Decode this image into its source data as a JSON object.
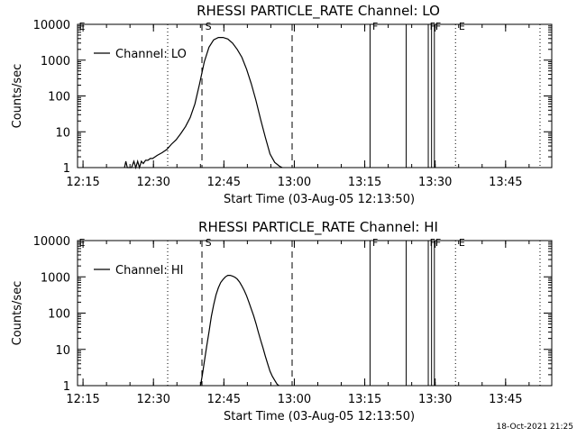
{
  "chart_data": [
    {
      "type": "line",
      "title": "RHESSI PARTICLE_RATE Channel: LO",
      "xlabel": "Start Time (03-Aug-05 12:13:50)",
      "ylabel": "Counts/sec",
      "y_scale": "log",
      "ylim": [
        1,
        10000
      ],
      "x_unit": "minutes after 12:13:50",
      "x_ticks": [
        {
          "label": "12:15",
          "x": 1.17
        },
        {
          "label": "12:30",
          "x": 16.17
        },
        {
          "label": "12:45",
          "x": 31.17
        },
        {
          "label": "13:00",
          "x": 46.17
        },
        {
          "label": "13:15",
          "x": 61.17
        },
        {
          "label": "13:30",
          "x": 76.17
        },
        {
          "label": "13:45",
          "x": 91.17
        }
      ],
      "y_ticks": [
        {
          "label": "1",
          "v": 1
        },
        {
          "label": "10",
          "v": 10
        },
        {
          "label": "100",
          "v": 100
        },
        {
          "label": "1000",
          "v": 1000
        },
        {
          "label": "10000",
          "v": 10000
        }
      ],
      "xlim": [
        0,
        101
      ],
      "legend": {
        "label": "Channel: LO",
        "position": "top-left"
      },
      "series": [
        {
          "name": "Channel: LO",
          "x": [
            10,
            10.3,
            10.6,
            11,
            11.5,
            12,
            12.4,
            12.8,
            13.2,
            13.6,
            14,
            14.5,
            15,
            15.5,
            16,
            17,
            18,
            19,
            20,
            21,
            22,
            23,
            24,
            25,
            26,
            27,
            28,
            29,
            30,
            31,
            32,
            33,
            34,
            35,
            36,
            37,
            38,
            39,
            40,
            41,
            42,
            43,
            43.6
          ],
          "y": [
            1,
            1.5,
            1,
            1,
            1,
            1.5,
            1,
            1.5,
            1,
            1.5,
            1.3,
            1.6,
            1.6,
            1.8,
            1.8,
            2.2,
            2.6,
            3.2,
            4.5,
            6,
            9,
            14,
            25,
            60,
            220,
            900,
            2300,
            3700,
            4300,
            4300,
            3900,
            3000,
            2000,
            1200,
            560,
            220,
            75,
            22,
            7,
            2.4,
            1.4,
            1.1,
            1
          ]
        }
      ],
      "dashed_lines": [
        26.5,
        45.7
      ],
      "dotted_lines": [
        19.2,
        80.5,
        98.5
      ],
      "solid_lines": [
        62.3,
        70,
        74.7,
        75.4,
        76
      ],
      "markers": [
        {
          "label": "E",
          "x": 0.3
        },
        {
          "label": "S",
          "x": 27.2
        },
        {
          "label": "F",
          "x": 62.8
        },
        {
          "label": "F",
          "x": 75
        },
        {
          "label": "F",
          "x": 76.2
        },
        {
          "label": "E",
          "x": 81.2
        }
      ]
    },
    {
      "type": "line",
      "title": "RHESSI PARTICLE_RATE Channel: HI",
      "xlabel": "Start Time (03-Aug-05 12:13:50)",
      "ylabel": "Counts/sec",
      "y_scale": "log",
      "ylim": [
        1,
        10000
      ],
      "x_unit": "minutes after 12:13:50",
      "x_ticks": [
        {
          "label": "12:15",
          "x": 1.17
        },
        {
          "label": "12:30",
          "x": 16.17
        },
        {
          "label": "12:45",
          "x": 31.17
        },
        {
          "label": "13:00",
          "x": 46.17
        },
        {
          "label": "13:15",
          "x": 61.17
        },
        {
          "label": "13:30",
          "x": 76.17
        },
        {
          "label": "13:45",
          "x": 91.17
        }
      ],
      "y_ticks": [
        {
          "label": "1",
          "v": 1
        },
        {
          "label": "10",
          "v": 10
        },
        {
          "label": "100",
          "v": 100
        },
        {
          "label": "1000",
          "v": 1000
        },
        {
          "label": "10000",
          "v": 10000
        }
      ],
      "xlim": [
        0,
        101
      ],
      "legend": {
        "label": "Channel: HI",
        "position": "top-left"
      },
      "series": [
        {
          "name": "Channel: HI",
          "x": [
            26.2,
            26.6,
            27,
            27.5,
            28,
            28.5,
            29,
            29.5,
            30,
            30.5,
            31,
            31.5,
            32,
            32.5,
            33,
            33.5,
            34,
            34.5,
            35,
            35.5,
            36,
            36.5,
            37,
            37.5,
            38,
            38.5,
            39,
            39.5,
            40,
            40.5,
            41,
            41.5,
            42,
            42.5,
            42.9
          ],
          "y": [
            1,
            2,
            4.5,
            12,
            30,
            80,
            170,
            320,
            500,
            700,
            850,
            1000,
            1100,
            1100,
            1050,
            980,
            870,
            720,
            560,
            420,
            300,
            200,
            130,
            85,
            52,
            30,
            18,
            11,
            6.5,
            4,
            2.5,
            1.8,
            1.4,
            1.1,
            1
          ]
        }
      ],
      "dashed_lines": [
        26.5,
        45.7
      ],
      "dotted_lines": [
        19.2,
        80.5,
        98.5
      ],
      "solid_lines": [
        62.3,
        70,
        74.7,
        75.4,
        76
      ],
      "markers": [
        {
          "label": "E",
          "x": 0.3
        },
        {
          "label": "S",
          "x": 27.2
        },
        {
          "label": "F",
          "x": 62.8
        },
        {
          "label": "F",
          "x": 75
        },
        {
          "label": "F",
          "x": 76.2
        },
        {
          "label": "E",
          "x": 81.2
        }
      ]
    }
  ],
  "footer": {
    "timestamp": "18-Oct-2021 21:25"
  }
}
